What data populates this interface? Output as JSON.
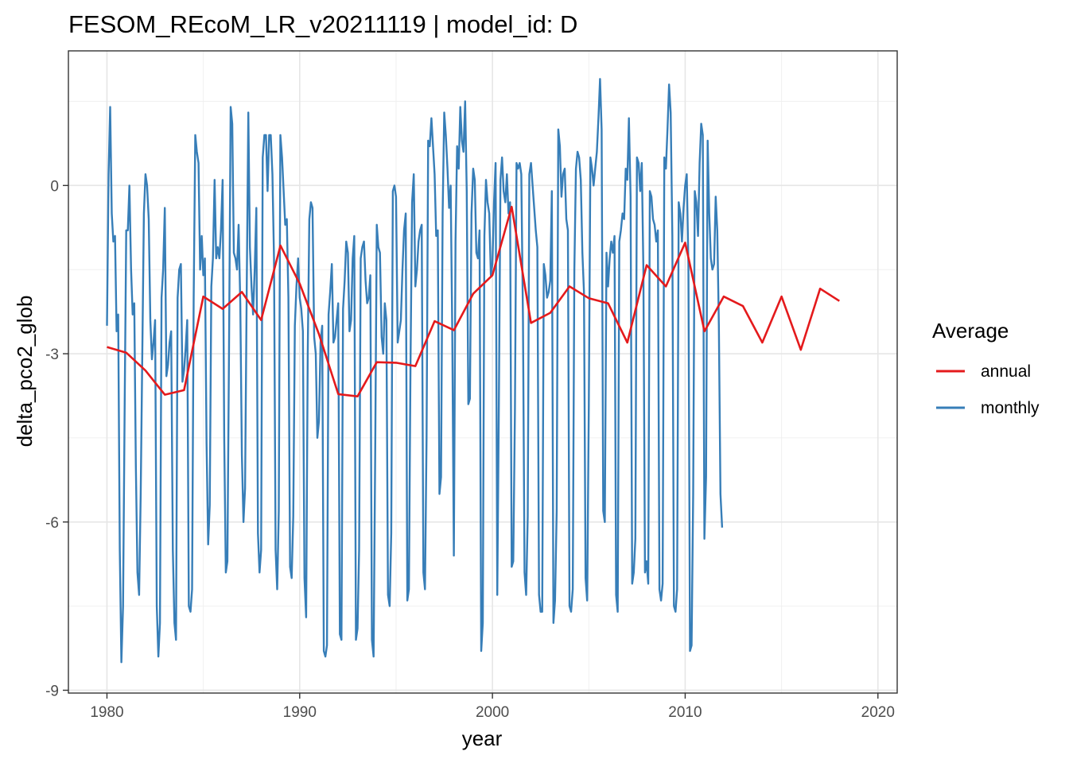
{
  "chart_data": {
    "type": "line",
    "title": "FESOM_REcoM_LR_v20211119 | model_id: D",
    "xlabel": "year",
    "ylabel": "delta_pco2_glob",
    "xlim": [
      1978.0,
      2021.0
    ],
    "ylim": [
      -9.05,
      2.4
    ],
    "x_ticks": [
      1980,
      1990,
      2000,
      2010,
      2020
    ],
    "x_tick_labels": [
      "1980",
      "1990",
      "2000",
      "2010",
      "2020"
    ],
    "y_ticks": [
      -9,
      -6,
      -3,
      0
    ],
    "y_tick_labels": [
      "-9",
      "-6",
      "-3",
      "0"
    ],
    "grid": true,
    "legend": {
      "title": "Average",
      "position": "right",
      "entries": [
        {
          "label": "annual",
          "color": "#e41a1c"
        },
        {
          "label": "monthly",
          "color": "#377eb8"
        }
      ]
    },
    "series": [
      {
        "name": "monthly",
        "color": "#377eb8",
        "x_start": 1980.0,
        "x_step": 0.08333,
        "values": [
          -2.5,
          0.2,
          1.4,
          -0.5,
          -1.0,
          -0.9,
          -2.6,
          -2.3,
          -6.5,
          -8.5,
          -7.5,
          -4.0,
          -0.8,
          -0.8,
          0.0,
          -1.5,
          -2.3,
          -2.1,
          -5.0,
          -6.9,
          -7.3,
          -5.5,
          -3.0,
          -0.5,
          0.2,
          0.0,
          -0.6,
          -2.4,
          -3.1,
          -2.8,
          -2.4,
          -7.5,
          -8.4,
          -7.8,
          -2.0,
          -1.5,
          -0.4,
          -3.4,
          -3.2,
          -2.8,
          -2.6,
          -6.5,
          -7.8,
          -8.1,
          -2.0,
          -1.5,
          -1.4,
          -3.5,
          -3.3,
          -2.9,
          -2.4,
          -7.5,
          -7.6,
          -7.2,
          -2.0,
          0.9,
          0.6,
          0.4,
          -1.5,
          -0.9,
          -1.6,
          -1.3,
          -4.6,
          -6.4,
          -5.7,
          -1.8,
          -1.3,
          0.1,
          -1.3,
          -1.1,
          -1.3,
          -0.8,
          0.1,
          -4.5,
          -6.9,
          -6.7,
          -3.0,
          1.4,
          1.1,
          -1.2,
          -1.3,
          -1.5,
          -0.7,
          -2.1,
          -4.8,
          -6.0,
          -5.4,
          -2.0,
          1.3,
          -1.1,
          -1.8,
          -2.3,
          -1.5,
          -0.4,
          -6.2,
          -6.9,
          -6.5,
          0.5,
          0.9,
          0.9,
          -0.1,
          0.9,
          0.9,
          0.2,
          -1.3,
          -6.5,
          -7.2,
          -5.8,
          0.9,
          0.5,
          -0.1,
          -0.7,
          -0.6,
          -2.0,
          -6.8,
          -7.0,
          -5.9,
          -2.5,
          -1.8,
          -1.3,
          -2.0,
          -2.2,
          -2.6,
          -7.0,
          -7.7,
          -3.0,
          -0.6,
          -0.3,
          -0.4,
          -2.7,
          -3.0,
          -4.5,
          -4.2,
          -2.8,
          -2.5,
          -8.3,
          -8.4,
          -8.2,
          -2.3,
          -1.9,
          -1.4,
          -2.8,
          -2.7,
          -2.4,
          -2.1,
          -8.0,
          -8.1,
          -2.2,
          -1.7,
          -1.0,
          -1.2,
          -2.6,
          -2.4,
          -1.3,
          -0.9,
          -8.1,
          -7.9,
          -6.5,
          -1.3,
          -1.1,
          -1.0,
          -1.7,
          -2.1,
          -2.0,
          -1.6,
          -8.1,
          -8.4,
          -4.8,
          -0.7,
          -1.1,
          -1.2,
          -2.7,
          -3.0,
          -2.1,
          -2.4,
          -7.3,
          -7.5,
          -6.2,
          -0.1,
          0.0,
          -0.2,
          -2.8,
          -2.6,
          -2.4,
          -1.5,
          -0.8,
          -0.5,
          -7.4,
          -7.2,
          -3.2,
          -0.3,
          0.2,
          -1.8,
          -1.5,
          -1.0,
          -0.8,
          -0.7,
          -6.9,
          -7.2,
          -4.5,
          0.8,
          0.7,
          1.2,
          0.7,
          0.2,
          -0.9,
          -0.8,
          -5.5,
          -5.2,
          -0.5,
          1.3,
          0.9,
          0.3,
          -0.4,
          0.0,
          -2.6,
          -6.6,
          -1.0,
          0.7,
          0.3,
          1.4,
          0.8,
          0.6,
          1.5,
          -0.1,
          -3.9,
          -3.8,
          -0.5,
          0.3,
          0.1,
          -1.2,
          -1.3,
          -0.8,
          -8.3,
          -7.8,
          -0.9,
          0.1,
          -0.3,
          -0.5,
          -1.6,
          -1.4,
          -0.3,
          0.4,
          -7.3,
          -3.9,
          0.1,
          0.5,
          -0.1,
          -0.3,
          0.2,
          -0.5,
          -0.3,
          -6.8,
          -6.7,
          -4.0,
          0.4,
          0.3,
          0.4,
          0.2,
          -2.4,
          -6.9,
          -7.3,
          -5.9,
          0.2,
          0.4,
          0.0,
          -0.4,
          -0.8,
          -1.1,
          -7.3,
          -7.6,
          -7.6,
          -1.4,
          -1.6,
          -2.0,
          -1.9,
          -1.7,
          -0.1,
          -7.8,
          -7.4,
          -5.8,
          1.0,
          0.7,
          -0.2,
          0.2,
          0.3,
          -0.6,
          -0.8,
          -7.5,
          -7.6,
          -7.2,
          -1.5,
          0.3,
          0.6,
          0.5,
          0.1,
          -1.2,
          -1.9,
          -7.0,
          -7.4,
          -3.9,
          0.5,
          0.3,
          0.0,
          0.3,
          0.6,
          1.2,
          1.9,
          1.0,
          -5.8,
          -6.0,
          -1.2,
          -1.8,
          -1.3,
          -1.0,
          -1.2,
          -0.9,
          -7.3,
          -7.6,
          -1.0,
          -0.8,
          -0.5,
          -0.6,
          0.3,
          0.1,
          1.2,
          -0.2,
          -7.1,
          -6.9,
          -6.3,
          0.5,
          0.4,
          -0.1,
          0.4,
          -1.5,
          -6.9,
          -6.7,
          -7.1,
          -0.1,
          -0.2,
          -0.6,
          -0.7,
          -1.0,
          -0.8,
          -7.2,
          -7.4,
          -7.1,
          0.5,
          0.3,
          1.0,
          1.8,
          1.3,
          -0.9,
          -7.5,
          -7.6,
          -7.2,
          -0.3,
          -0.5,
          -1.0,
          -0.4,
          0.0,
          0.2,
          -1.4,
          -8.3,
          -8.2,
          -5.5,
          -0.1,
          -0.3,
          -0.9,
          0.4,
          1.1,
          0.9,
          -6.3,
          -5.2,
          0.8,
          -0.5,
          -1.3,
          -1.5,
          -1.4,
          -0.2,
          -0.8,
          -2.5,
          -5.5,
          -6.1
        ]
      },
      {
        "name": "annual",
        "color": "#e41a1c",
        "x": [
          1980,
          1981,
          1982,
          1983,
          1984,
          1985,
          1986,
          1987,
          1988,
          1989,
          1990,
          1991,
          1992,
          1993,
          1994,
          1995,
          1996,
          1997,
          1998,
          1999,
          2000,
          2001,
          2002,
          2003,
          2004,
          2005,
          2006,
          2007,
          2008,
          2009,
          2010,
          2011,
          2012,
          2013,
          2014,
          2015,
          2016,
          2017,
          2018
        ],
        "values": [
          -2.88,
          -2.98,
          -3.3,
          -3.73,
          -3.65,
          -1.98,
          -2.2,
          -1.9,
          -2.4,
          -1.07,
          -1.75,
          -2.65,
          -3.72,
          -3.76,
          -3.15,
          -3.16,
          -3.22,
          -2.42,
          -2.58,
          -1.93,
          -1.6,
          -0.38,
          -2.45,
          -2.27,
          -1.8,
          -2.01,
          -2.1,
          -2.8,
          -1.42,
          -1.8,
          -1.02,
          -2.6,
          -1.98,
          -2.15,
          -2.8,
          -1.98,
          -2.93,
          -1.84,
          -2.06
        ]
      }
    ]
  }
}
